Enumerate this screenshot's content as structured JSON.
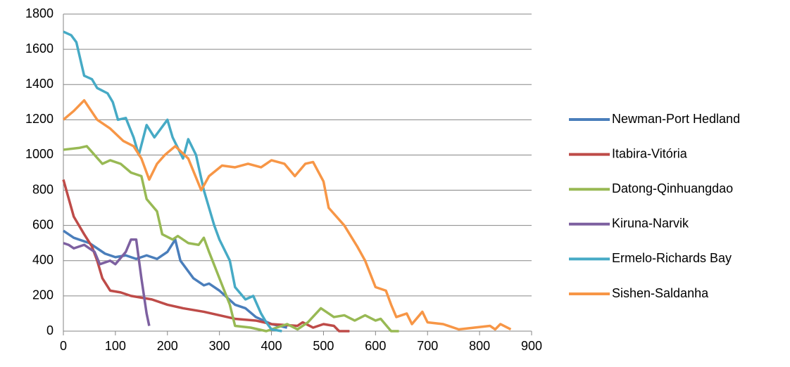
{
  "chart_data": {
    "type": "line",
    "xlim": [
      0,
      900
    ],
    "xticks": [
      0,
      100,
      200,
      300,
      400,
      500,
      600,
      700,
      800,
      900
    ],
    "ylim": [
      0,
      1800
    ],
    "yticks": [
      0,
      200,
      400,
      600,
      800,
      1000,
      1200,
      1400,
      1600,
      1800
    ],
    "grid": true,
    "legend": "right",
    "series": [
      {
        "name": "Newman-Port Hedland",
        "color": "#4a7ebb",
        "x": [
          0,
          20,
          50,
          80,
          100,
          120,
          140,
          160,
          180,
          200,
          215,
          225,
          250,
          270,
          280,
          300,
          330,
          350,
          370,
          400,
          430
        ],
        "values": [
          570,
          530,
          500,
          440,
          420,
          430,
          410,
          430,
          410,
          450,
          520,
          400,
          300,
          260,
          270,
          230,
          150,
          130,
          80,
          40,
          20
        ]
      },
      {
        "name": "Itabira-Vitória",
        "color": "#be4b48",
        "x": [
          0,
          20,
          40,
          55,
          65,
          75,
          90,
          110,
          130,
          170,
          200,
          230,
          270,
          300,
          330,
          370,
          400,
          450,
          460,
          480,
          500,
          520,
          530,
          550
        ],
        "values": [
          860,
          650,
          550,
          480,
          400,
          300,
          230,
          220,
          200,
          180,
          150,
          130,
          110,
          90,
          70,
          60,
          40,
          30,
          50,
          20,
          40,
          30,
          0,
          0
        ]
      },
      {
        "name": "Datong-Qinhuangdao",
        "color": "#98b954",
        "x": [
          0,
          30,
          45,
          60,
          75,
          90,
          110,
          130,
          150,
          160,
          180,
          190,
          210,
          220,
          240,
          260,
          270,
          280,
          300,
          320,
          330,
          360,
          390,
          410,
          430,
          450,
          470,
          495,
          520,
          540,
          560,
          580,
          600,
          610,
          630,
          645
        ],
        "values": [
          1030,
          1040,
          1050,
          1000,
          950,
          970,
          950,
          900,
          880,
          750,
          680,
          550,
          520,
          540,
          500,
          490,
          530,
          450,
          300,
          150,
          30,
          20,
          0,
          20,
          40,
          10,
          50,
          130,
          80,
          90,
          60,
          90,
          60,
          70,
          0,
          0
        ]
      },
      {
        "name": "Kiruna-Narvik",
        "color": "#7d60a0",
        "x": [
          0,
          10,
          20,
          30,
          40,
          60,
          70,
          90,
          100,
          120,
          130,
          140,
          150,
          160,
          165
        ],
        "values": [
          500,
          490,
          470,
          480,
          490,
          450,
          380,
          400,
          380,
          450,
          520,
          520,
          300,
          100,
          30
        ]
      },
      {
        "name": "Ermelo-Richards Bay",
        "color": "#46aac5",
        "x": [
          0,
          15,
          25,
          40,
          55,
          65,
          85,
          95,
          105,
          120,
          135,
          145,
          160,
          175,
          200,
          210,
          230,
          240,
          255,
          270,
          290,
          300,
          320,
          330,
          350,
          365,
          380,
          390,
          400,
          420
        ],
        "values": [
          1700,
          1680,
          1640,
          1450,
          1430,
          1380,
          1350,
          1300,
          1200,
          1210,
          1100,
          1000,
          1170,
          1100,
          1200,
          1100,
          980,
          1090,
          1000,
          800,
          600,
          520,
          400,
          250,
          180,
          200,
          100,
          50,
          10,
          0
        ]
      },
      {
        "name": "Sishen-Saldanha",
        "color": "#f79646",
        "x": [
          0,
          20,
          40,
          65,
          90,
          115,
          135,
          150,
          165,
          180,
          195,
          215,
          240,
          265,
          280,
          305,
          330,
          355,
          380,
          400,
          425,
          445,
          465,
          480,
          500,
          510,
          540,
          565,
          580,
          600,
          620,
          630,
          640,
          660,
          670,
          690,
          700,
          730,
          760,
          790,
          820,
          830,
          840,
          860
        ],
        "values": [
          1200,
          1250,
          1310,
          1200,
          1150,
          1080,
          1050,
          980,
          860,
          950,
          1000,
          1050,
          980,
          800,
          880,
          940,
          930,
          950,
          930,
          970,
          950,
          880,
          950,
          960,
          850,
          700,
          600,
          480,
          400,
          250,
          230,
          150,
          80,
          100,
          40,
          110,
          50,
          40,
          10,
          20,
          30,
          10,
          40,
          10
        ]
      }
    ]
  }
}
